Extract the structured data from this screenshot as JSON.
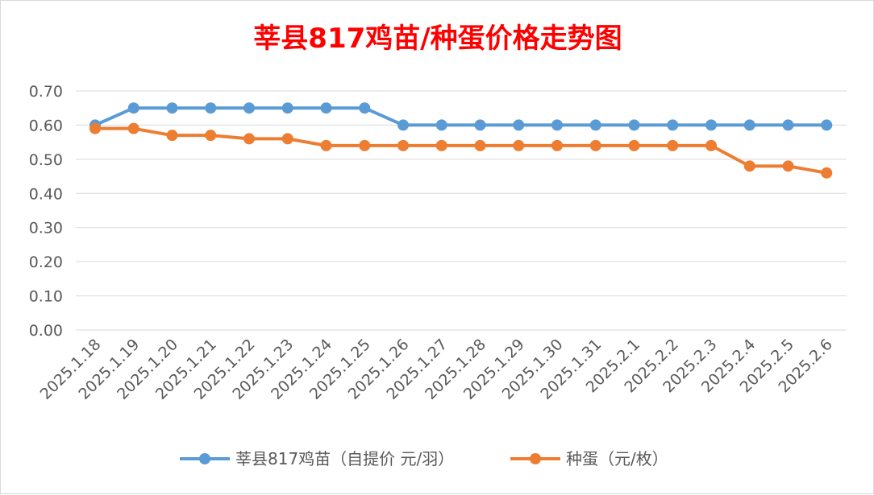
{
  "chart_data": {
    "type": "line",
    "title": "莘县817鸡苗/种蛋价格走势图",
    "categories": [
      "2025.1.18",
      "2025.1.19",
      "2025.1.20",
      "2025.1.21",
      "2025.1.22",
      "2025.1.23",
      "2025.1.24",
      "2025.1.25",
      "2025.1.26",
      "2025.1.27",
      "2025.1.28",
      "2025.1.29",
      "2025.1.30",
      "2025.1.31",
      "2025.2.1",
      "2025.2.2",
      "2025.2.3",
      "2025.2.4",
      "2025.2.5",
      "2025.2.6"
    ],
    "series": [
      {
        "name": "莘县817鸡苗（自提价 元/羽）",
        "color": "#5b9bd5",
        "values": [
          0.6,
          0.65,
          0.65,
          0.65,
          0.65,
          0.65,
          0.65,
          0.65,
          0.6,
          0.6,
          0.6,
          0.6,
          0.6,
          0.6,
          0.6,
          0.6,
          0.6,
          0.6,
          0.6,
          0.6
        ]
      },
      {
        "name": "种蛋（元/枚）",
        "color": "#ed7d31",
        "values": [
          0.59,
          0.59,
          0.57,
          0.57,
          0.56,
          0.56,
          0.54,
          0.54,
          0.54,
          0.54,
          0.54,
          0.54,
          0.54,
          0.54,
          0.54,
          0.54,
          0.54,
          0.48,
          0.48,
          0.46
        ]
      }
    ],
    "ylim": [
      0,
      0.7
    ],
    "yticks": [
      "0.00",
      "0.10",
      "0.20",
      "0.30",
      "0.40",
      "0.50",
      "0.60",
      "0.70"
    ],
    "xlabel": "",
    "ylabel": "",
    "grid": true,
    "legend": "bottom"
  }
}
